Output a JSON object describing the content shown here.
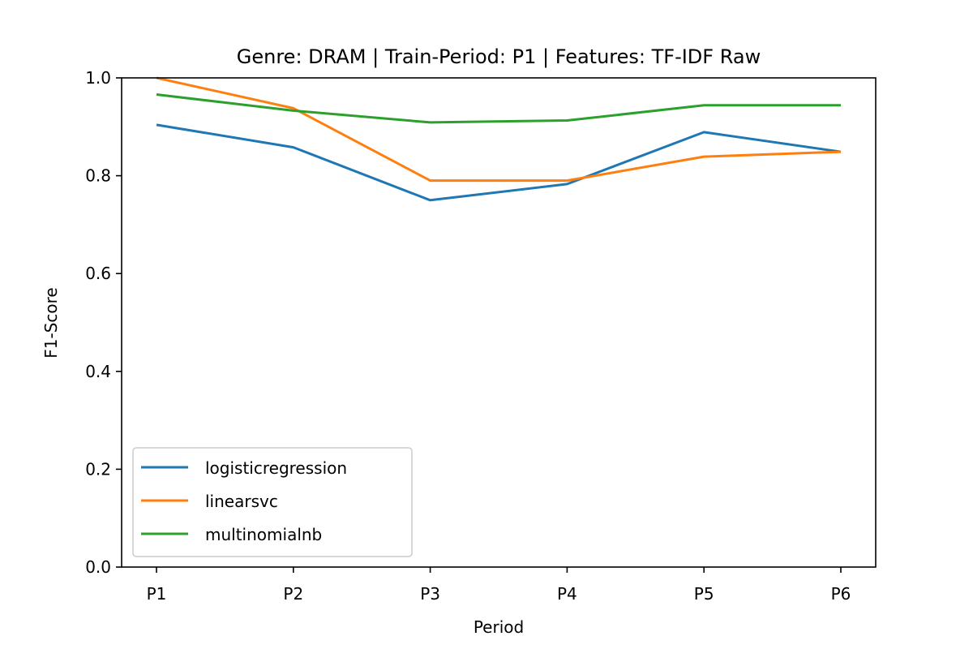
{
  "chart_data": {
    "type": "line",
    "title": "Genre: DRAM | Train-Period: P1 | Features: TF-IDF Raw",
    "xlabel": "Period",
    "ylabel": "F1-Score",
    "categories": [
      "P1",
      "P2",
      "P3",
      "P4",
      "P5",
      "P6"
    ],
    "ylim": [
      0.0,
      1.0
    ],
    "yticks": [
      0.0,
      0.2,
      0.4,
      0.6,
      0.8,
      1.0
    ],
    "ytick_labels": [
      "0.0",
      "0.2",
      "0.4",
      "0.6",
      "0.8",
      "1.0"
    ],
    "grid": false,
    "legend_position": "bottom-left",
    "series": [
      {
        "name": "logisticregression",
        "color": "#1f77b4",
        "values": [
          0.904,
          0.858,
          0.75,
          0.783,
          0.889,
          0.849
        ]
      },
      {
        "name": "linearsvc",
        "color": "#ff7f0e",
        "values": [
          1.0,
          0.938,
          0.79,
          0.79,
          0.839,
          0.849
        ]
      },
      {
        "name": "multinomialnb",
        "color": "#2ca02c",
        "values": [
          0.966,
          0.933,
          0.909,
          0.913,
          0.944,
          0.944
        ]
      }
    ]
  }
}
